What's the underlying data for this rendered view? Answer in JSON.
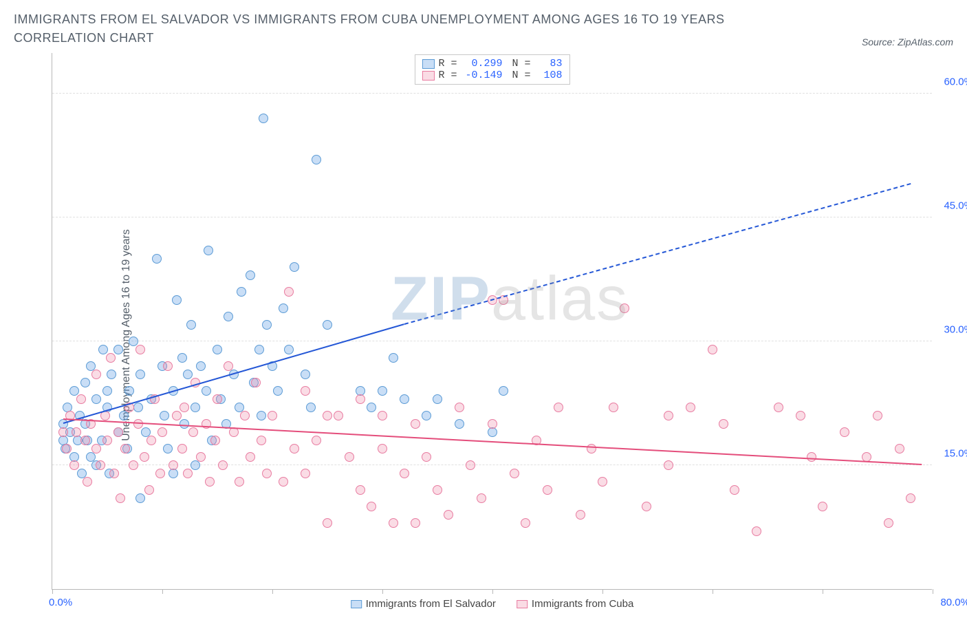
{
  "title": "IMMIGRANTS FROM EL SALVADOR VS IMMIGRANTS FROM CUBA UNEMPLOYMENT AMONG AGES 16 TO 19 YEARS CORRELATION CHART",
  "source": "Source: ZipAtlas.com",
  "ylabel": "Unemployment Among Ages 16 to 19 years",
  "watermark_zip": "ZIP",
  "watermark_atlas": "atlas",
  "chart": {
    "type": "scatter",
    "xlim": [
      0,
      80
    ],
    "ylim": [
      0,
      65
    ],
    "x_min_label": "0.0%",
    "x_max_label": "80.0%",
    "ytick_labels": [
      "15.0%",
      "30.0%",
      "45.0%",
      "60.0%"
    ],
    "ytick_values": [
      15,
      30,
      45,
      60
    ],
    "ytick_color": "#2962ff",
    "xlabel_color": "#2962ff",
    "xtick_positions": [
      0,
      10,
      20,
      30,
      40,
      50,
      60,
      70,
      80
    ],
    "background_color": "#ffffff",
    "grid_color": "#e0e0e0",
    "marker_radius": 7,
    "marker_stroke_width": 1.5,
    "series": [
      {
        "name": "Immigrants from El Salvador",
        "fill": "rgba(100,160,230,0.35)",
        "stroke": "#5b9bd5",
        "r": 0.299,
        "n": 83,
        "trend": {
          "x1": 1,
          "y1": 20,
          "x2": 32,
          "y2": 32,
          "color": "#2457d6",
          "dash_x1": 32,
          "dash_y1": 32,
          "dash_x2": 78,
          "dash_y2": 49
        },
        "points": [
          [
            1,
            18
          ],
          [
            1,
            20
          ],
          [
            1.2,
            17
          ],
          [
            1.4,
            22
          ],
          [
            1.6,
            19
          ],
          [
            2,
            24
          ],
          [
            2,
            16
          ],
          [
            2.3,
            18
          ],
          [
            2.5,
            21
          ],
          [
            2.7,
            14
          ],
          [
            3,
            20
          ],
          [
            3,
            25
          ],
          [
            3.2,
            18
          ],
          [
            3.5,
            16
          ],
          [
            3.5,
            27
          ],
          [
            4,
            23
          ],
          [
            4,
            15
          ],
          [
            4.5,
            18
          ],
          [
            4.6,
            29
          ],
          [
            5,
            22
          ],
          [
            5,
            24
          ],
          [
            5.2,
            14
          ],
          [
            5.4,
            26
          ],
          [
            6,
            19
          ],
          [
            6,
            29
          ],
          [
            6.5,
            21
          ],
          [
            6.8,
            17
          ],
          [
            7,
            24
          ],
          [
            7.4,
            30
          ],
          [
            7.8,
            22
          ],
          [
            8,
            11
          ],
          [
            8,
            26
          ],
          [
            8.5,
            19
          ],
          [
            9,
            23
          ],
          [
            9.5,
            40
          ],
          [
            10,
            27
          ],
          [
            10.2,
            21
          ],
          [
            10.5,
            17
          ],
          [
            11,
            24
          ],
          [
            11,
            14
          ],
          [
            11.3,
            35
          ],
          [
            11.8,
            28
          ],
          [
            12,
            20
          ],
          [
            12.3,
            26
          ],
          [
            12.6,
            32
          ],
          [
            13,
            15
          ],
          [
            13,
            22
          ],
          [
            13.5,
            27
          ],
          [
            14,
            24
          ],
          [
            14.2,
            41
          ],
          [
            14.5,
            18
          ],
          [
            15,
            29
          ],
          [
            15.3,
            23
          ],
          [
            15.8,
            20
          ],
          [
            16,
            33
          ],
          [
            16.5,
            26
          ],
          [
            17,
            22
          ],
          [
            17.2,
            36
          ],
          [
            18,
            38
          ],
          [
            18.3,
            25
          ],
          [
            18.8,
            29
          ],
          [
            19,
            21
          ],
          [
            19.2,
            57
          ],
          [
            19.5,
            32
          ],
          [
            20,
            27
          ],
          [
            20.5,
            24
          ],
          [
            21,
            34
          ],
          [
            21.5,
            29
          ],
          [
            22,
            39
          ],
          [
            23,
            26
          ],
          [
            23.5,
            22
          ],
          [
            24,
            52
          ],
          [
            25,
            32
          ],
          [
            28,
            24
          ],
          [
            29,
            22
          ],
          [
            30,
            24
          ],
          [
            31,
            28
          ],
          [
            32,
            23
          ],
          [
            34,
            21
          ],
          [
            35,
            23
          ],
          [
            37,
            20
          ],
          [
            40,
            19
          ],
          [
            41,
            24
          ]
        ]
      },
      {
        "name": "Immigrants from Cuba",
        "fill": "rgba(240,140,170,0.30)",
        "stroke": "#e87ba0",
        "r": -0.149,
        "n": 108,
        "trend": {
          "x1": 1,
          "y1": 20.5,
          "x2": 79,
          "y2": 15,
          "color": "#e44d7b"
        },
        "points": [
          [
            1,
            19
          ],
          [
            1.3,
            17
          ],
          [
            1.6,
            21
          ],
          [
            2,
            15
          ],
          [
            2.2,
            19
          ],
          [
            2.6,
            23
          ],
          [
            3,
            18
          ],
          [
            3.2,
            13
          ],
          [
            3.5,
            20
          ],
          [
            4,
            17
          ],
          [
            4,
            26
          ],
          [
            4.4,
            15
          ],
          [
            4.8,
            21
          ],
          [
            5,
            18
          ],
          [
            5.3,
            28
          ],
          [
            5.6,
            14
          ],
          [
            6,
            19
          ],
          [
            6.2,
            11
          ],
          [
            6.6,
            17
          ],
          [
            7,
            22
          ],
          [
            7.4,
            15
          ],
          [
            7.8,
            20
          ],
          [
            8,
            29
          ],
          [
            8.4,
            16
          ],
          [
            8.8,
            12
          ],
          [
            9,
            18
          ],
          [
            9.3,
            23
          ],
          [
            9.8,
            14
          ],
          [
            10,
            19
          ],
          [
            10.5,
            27
          ],
          [
            11,
            15
          ],
          [
            11.3,
            21
          ],
          [
            11.8,
            17
          ],
          [
            12,
            22
          ],
          [
            12.3,
            14
          ],
          [
            12.8,
            19
          ],
          [
            13,
            25
          ],
          [
            13.5,
            16
          ],
          [
            14,
            20
          ],
          [
            14.3,
            13
          ],
          [
            14.8,
            18
          ],
          [
            15,
            23
          ],
          [
            15.5,
            15
          ],
          [
            16,
            27
          ],
          [
            16.5,
            19
          ],
          [
            17,
            13
          ],
          [
            17.5,
            21
          ],
          [
            18,
            16
          ],
          [
            18.5,
            25
          ],
          [
            19,
            18
          ],
          [
            19.5,
            14
          ],
          [
            20,
            21
          ],
          [
            21,
            13
          ],
          [
            21.5,
            36
          ],
          [
            22,
            17
          ],
          [
            23,
            24
          ],
          [
            23,
            14
          ],
          [
            24,
            18
          ],
          [
            25,
            21
          ],
          [
            25,
            8
          ],
          [
            26,
            21
          ],
          [
            27,
            16
          ],
          [
            28,
            12
          ],
          [
            28,
            23
          ],
          [
            29,
            10
          ],
          [
            30,
            21
          ],
          [
            30,
            17
          ],
          [
            31,
            8
          ],
          [
            32,
            14
          ],
          [
            33,
            20
          ],
          [
            33,
            8
          ],
          [
            34,
            16
          ],
          [
            35,
            12
          ],
          [
            36,
            9
          ],
          [
            37,
            22
          ],
          [
            38,
            15
          ],
          [
            39,
            11
          ],
          [
            40,
            35
          ],
          [
            40,
            20
          ],
          [
            41,
            35
          ],
          [
            42,
            14
          ],
          [
            43,
            8
          ],
          [
            44,
            18
          ],
          [
            45,
            12
          ],
          [
            46,
            22
          ],
          [
            48,
            9
          ],
          [
            49,
            17
          ],
          [
            50,
            13
          ],
          [
            51,
            22
          ],
          [
            52,
            34
          ],
          [
            54,
            10
          ],
          [
            56,
            21
          ],
          [
            56,
            15
          ],
          [
            58,
            22
          ],
          [
            60,
            29
          ],
          [
            61,
            20
          ],
          [
            62,
            12
          ],
          [
            64,
            7
          ],
          [
            66,
            22
          ],
          [
            68,
            21
          ],
          [
            69,
            16
          ],
          [
            70,
            10
          ],
          [
            72,
            19
          ],
          [
            74,
            16
          ],
          [
            75,
            21
          ],
          [
            76,
            8
          ],
          [
            77,
            17
          ],
          [
            78,
            11
          ]
        ]
      }
    ]
  },
  "legend": {
    "r_label": "R =",
    "n_label": "N ="
  }
}
